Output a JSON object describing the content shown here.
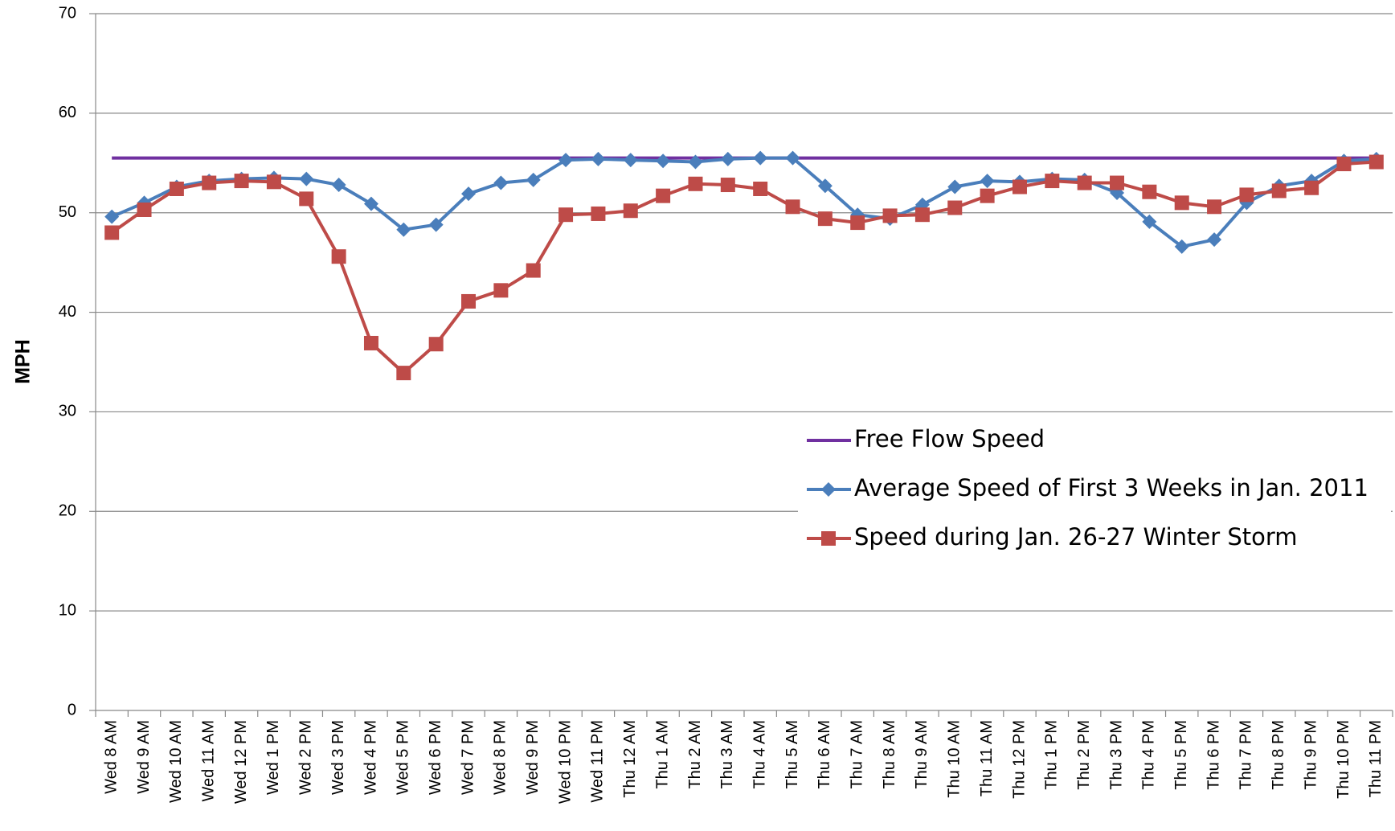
{
  "chart_data": {
    "type": "line",
    "ylabel": "MPH",
    "categories": [
      "Wed 8 AM",
      "Wed 9 AM",
      "Wed 10 AM",
      "Wed 11 AM",
      "Wed 12 PM",
      "Wed 1 PM",
      "Wed 2 PM",
      "Wed 3 PM",
      "Wed 4 PM",
      "Wed 5 PM",
      "Wed 6 PM",
      "Wed 7 PM",
      "Wed 8 PM",
      "Wed 9 PM",
      "Wed 10 PM",
      "Wed 11 PM",
      "Thu 12 AM",
      "Thu 1 AM",
      "Thu 2 AM",
      "Thu 3 AM",
      "Thu 4 AM",
      "Thu 5 AM",
      "Thu 6 AM",
      "Thu 7 AM",
      "Thu 8 AM",
      "Thu 9 AM",
      "Thu 10 AM",
      "Thu 11 AM",
      "Thu 12 PM",
      "Thu 1 PM",
      "Thu 2 PM",
      "Thu 3 PM",
      "Thu 4 PM",
      "Thu 5 PM",
      "Thu 6 PM",
      "Thu 7 PM",
      "Thu 8 PM",
      "Thu 9 PM",
      "Thu 10 PM",
      "Thu 11 PM"
    ],
    "series": [
      {
        "name": "Free Flow Speed",
        "color": "#7030a0",
        "marker": "none",
        "values": [
          55.5,
          55.5,
          55.5,
          55.5,
          55.5,
          55.5,
          55.5,
          55.5,
          55.5,
          55.5,
          55.5,
          55.5,
          55.5,
          55.5,
          55.5,
          55.5,
          55.5,
          55.5,
          55.5,
          55.5,
          55.5,
          55.5,
          55.5,
          55.5,
          55.5,
          55.5,
          55.5,
          55.5,
          55.5,
          55.5,
          55.5,
          55.5,
          55.5,
          55.5,
          55.5,
          55.5,
          55.5,
          55.5,
          55.5,
          55.5
        ]
      },
      {
        "name": "Average Speed of First 3 Weeks in Jan. 2011",
        "color": "#4a7ebb",
        "marker": "diamond",
        "values": [
          49.6,
          51,
          52.6,
          53.2,
          53.4,
          53.5,
          53.4,
          52.8,
          50.9,
          48.3,
          48.8,
          51.9,
          53,
          53.3,
          55.3,
          55.4,
          55.3,
          55.2,
          55.1,
          55.4,
          55.5,
          55.5,
          52.7,
          49.8,
          49.4,
          50.8,
          52.6,
          53.2,
          53.1,
          53.4,
          53.3,
          52,
          49.1,
          46.6,
          47.3,
          51,
          52.7,
          53.2,
          55.2,
          55.4
        ]
      },
      {
        "name": "Speed during Jan. 26-27 Winter Storm",
        "color": "#be4b48",
        "marker": "square",
        "values": [
          48,
          50.3,
          52.4,
          53,
          53.2,
          53.1,
          51.4,
          45.6,
          36.9,
          33.9,
          36.8,
          41.1,
          42.2,
          44.2,
          49.8,
          49.9,
          50.2,
          51.7,
          52.9,
          52.8,
          52.4,
          50.6,
          49.4,
          49,
          49.7,
          49.8,
          50.5,
          51.7,
          52.6,
          53.2,
          53,
          53,
          52.1,
          51,
          50.6,
          51.8,
          52.2,
          52.5,
          54.9,
          55.1
        ]
      }
    ],
    "ylim": [
      0,
      70
    ],
    "yticks": [
      0,
      10,
      20,
      30,
      40,
      50,
      60,
      70
    ],
    "grid": true,
    "legend": "right"
  }
}
